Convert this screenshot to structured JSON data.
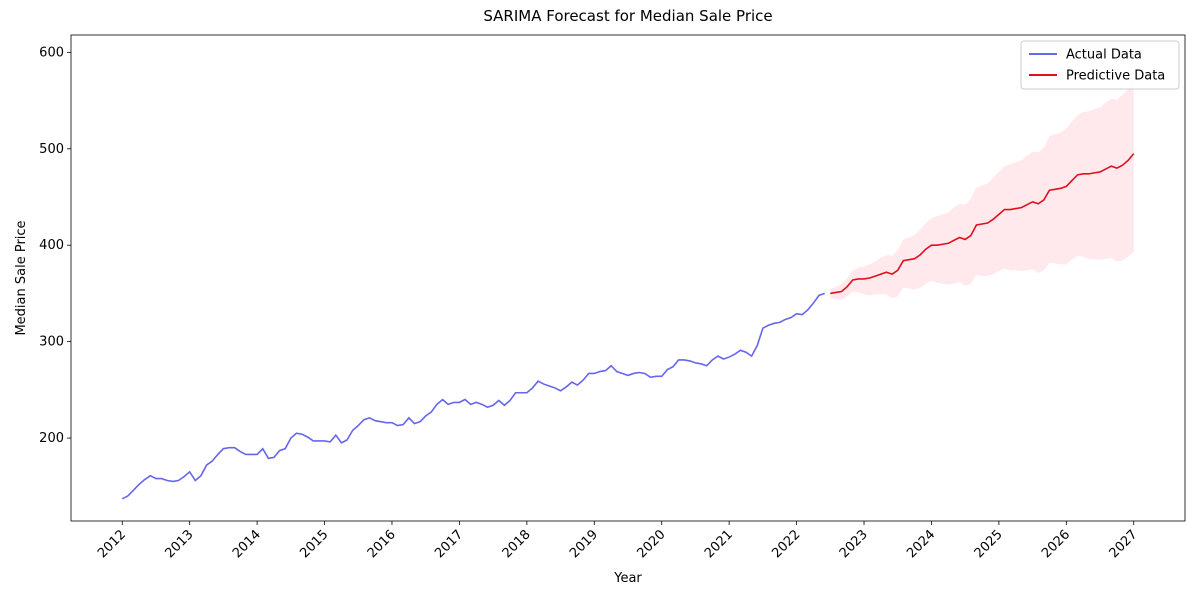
{
  "chart_data": {
    "type": "line",
    "title": "SARIMA Forecast for Median Sale Price",
    "x_label": "Year",
    "y_label": "Median Sale Price",
    "xlim": [
      2011.24,
      2027.76
    ],
    "ylim": [
      114,
      618
    ],
    "xticks": [
      2012,
      2013,
      2014,
      2015,
      2016,
      2017,
      2018,
      2019,
      2020,
      2021,
      2022,
      2023,
      2024,
      2025,
      2026,
      2027
    ],
    "yticks": [
      200,
      300,
      400,
      500,
      600
    ],
    "grid": false,
    "legend": "upper right",
    "series": [
      {
        "name": "Actual Data",
        "color": "#6666ee",
        "x": [
          2012,
          2012.083,
          2012.167,
          2012.25,
          2012.333,
          2012.417,
          2012.5,
          2012.583,
          2012.667,
          2012.75,
          2012.833,
          2012.917,
          2013,
          2013.083,
          2013.167,
          2013.25,
          2013.333,
          2013.417,
          2013.5,
          2013.583,
          2013.667,
          2013.75,
          2013.833,
          2013.917,
          2014,
          2014.083,
          2014.167,
          2014.25,
          2014.333,
          2014.417,
          2014.5,
          2014.583,
          2014.667,
          2014.75,
          2014.833,
          2014.917,
          2015,
          2015.083,
          2015.167,
          2015.25,
          2015.333,
          2015.417,
          2015.5,
          2015.583,
          2015.667,
          2015.75,
          2015.833,
          2015.917,
          2016,
          2016.083,
          2016.167,
          2016.25,
          2016.333,
          2016.417,
          2016.5,
          2016.583,
          2016.667,
          2016.75,
          2016.833,
          2016.917,
          2017,
          2017.083,
          2017.167,
          2017.25,
          2017.333,
          2017.417,
          2017.5,
          2017.583,
          2017.667,
          2017.75,
          2017.833,
          2017.917,
          2018,
          2018.083,
          2018.167,
          2018.25,
          2018.333,
          2018.417,
          2018.5,
          2018.583,
          2018.667,
          2018.75,
          2018.833,
          2018.917,
          2019,
          2019.083,
          2019.167,
          2019.25,
          2019.333,
          2019.417,
          2019.5,
          2019.583,
          2019.667,
          2019.75,
          2019.833,
          2019.917,
          2020,
          2020.083,
          2020.167,
          2020.25,
          2020.333,
          2020.417,
          2020.5,
          2020.583,
          2020.667,
          2020.75,
          2020.833,
          2020.917,
          2021,
          2021.083,
          2021.167,
          2021.25,
          2021.333,
          2021.417,
          2021.5,
          2021.583,
          2021.667,
          2021.75,
          2021.833,
          2021.917,
          2022,
          2022.083,
          2022.167,
          2022.25,
          2022.333,
          2022.417
        ],
        "values": [
          137,
          140,
          146,
          152,
          157,
          161,
          158,
          158,
          156,
          155,
          156,
          160,
          165,
          156,
          161,
          172,
          176,
          183,
          189,
          190,
          190,
          186,
          183,
          183,
          183,
          189,
          179,
          180,
          187,
          189,
          200,
          205,
          204,
          201,
          197,
          197,
          197,
          196,
          203,
          195,
          198,
          208,
          213,
          219,
          221,
          218,
          217,
          216,
          216,
          213,
          214,
          221,
          215,
          217,
          223,
          227,
          235,
          240,
          235,
          237,
          237,
          240,
          235,
          237,
          235,
          232,
          234,
          239,
          234,
          239,
          247,
          247,
          247,
          252,
          259,
          256,
          254,
          252,
          249,
          253,
          258,
          255,
          260,
          267,
          267,
          269,
          270,
          275,
          269,
          267,
          265,
          267,
          268,
          267,
          263,
          264,
          264,
          271,
          274,
          281,
          281,
          280,
          278,
          277,
          275,
          281,
          285,
          282,
          284,
          287,
          291,
          289,
          285,
          296,
          314,
          317,
          319,
          320,
          323,
          325,
          329,
          328,
          333,
          340,
          348,
          350
        ]
      },
      {
        "name": "Predictive Data",
        "color": "#e0101c",
        "x": [
          2022.5,
          2022.583,
          2022.667,
          2022.75,
          2022.833,
          2022.917,
          2023,
          2023.083,
          2023.167,
          2023.25,
          2023.333,
          2023.417,
          2023.5,
          2023.583,
          2023.667,
          2023.75,
          2023.833,
          2023.917,
          2024,
          2024.083,
          2024.167,
          2024.25,
          2024.333,
          2024.417,
          2024.5,
          2024.583,
          2024.667,
          2024.75,
          2024.833,
          2024.917,
          2025,
          2025.083,
          2025.167,
          2025.25,
          2025.333,
          2025.417,
          2025.5,
          2025.583,
          2025.667,
          2025.75,
          2025.833,
          2025.917,
          2026,
          2026.083,
          2026.167,
          2026.25,
          2026.333,
          2026.417,
          2026.5,
          2026.583,
          2026.667,
          2026.75,
          2026.833,
          2026.917,
          2027
        ],
        "values": [
          350,
          351,
          352,
          357,
          364,
          365,
          365,
          366,
          368,
          370,
          372,
          370,
          374,
          384,
          385,
          386,
          390,
          396,
          400,
          400,
          401,
          402,
          405,
          408,
          406,
          410,
          421,
          422,
          423,
          427,
          432,
          437,
          437,
          438,
          439,
          442,
          445,
          443,
          447,
          457,
          458,
          459,
          461,
          467,
          473,
          474,
          474,
          475,
          476,
          479,
          482,
          480,
          483,
          488,
          495
        ]
      }
    ],
    "band": {
      "color": "#ffc0cb",
      "lower": [
        345,
        344,
        343,
        347,
        352,
        351,
        349,
        348,
        349,
        349,
        349,
        345,
        347,
        356,
        355,
        354,
        356,
        360,
        363,
        361,
        360,
        359,
        360,
        362,
        358,
        360,
        369,
        368,
        368,
        370,
        373,
        376,
        374,
        374,
        373,
        374,
        375,
        371,
        374,
        382,
        381,
        380,
        380,
        385,
        389,
        388,
        386,
        385,
        385,
        386,
        387,
        383,
        384,
        388,
        393
      ],
      "upper": [
        355,
        357,
        360,
        366,
        374,
        377,
        378,
        380,
        383,
        387,
        390,
        389,
        395,
        406,
        408,
        411,
        416,
        423,
        428,
        430,
        432,
        434,
        439,
        443,
        442,
        448,
        460,
        462,
        464,
        470,
        476,
        482,
        484,
        486,
        488,
        493,
        497,
        496,
        501,
        513,
        515,
        517,
        521,
        528,
        535,
        538,
        539,
        541,
        543,
        548,
        552,
        551,
        556,
        562,
        570
      ]
    }
  }
}
